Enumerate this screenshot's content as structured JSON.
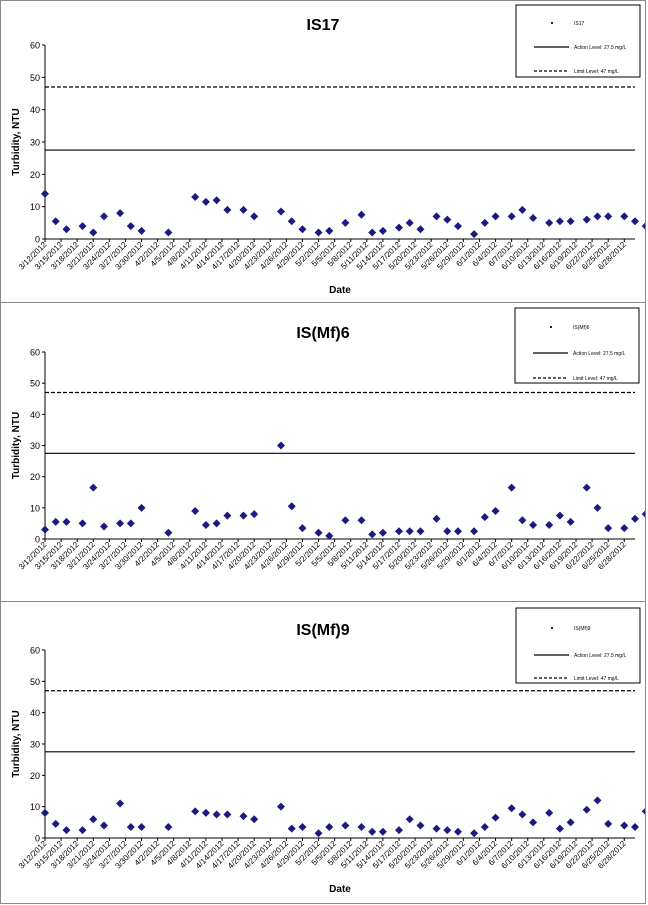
{
  "charts": [
    {
      "chart_data": {
        "type": "scatter",
        "title": "IS17",
        "xlabel": "Date",
        "ylabel": "Turbidity, NTU",
        "ylim": [
          0,
          60
        ],
        "yticks": [
          0,
          10,
          20,
          30,
          40,
          50,
          60
        ],
        "xlim": [
          "3/12/2012",
          "6/30/2012"
        ],
        "xticks": [
          "3/12/2012",
          "3/15/2012",
          "3/18/2012",
          "3/21/2012",
          "3/24/2012",
          "3/27/2012",
          "3/30/2012",
          "4/2/2012",
          "4/5/2012",
          "4/8/2012",
          "4/11/2012",
          "4/14/2012",
          "4/17/2012",
          "4/20/2012",
          "4/23/2012",
          "4/26/2012",
          "4/29/2012",
          "5/2/2012",
          "5/5/2012",
          "5/8/2012",
          "5/11/2012",
          "5/14/2012",
          "5/17/2012",
          "5/20/2012",
          "5/23/2012",
          "5/26/2012",
          "5/29/2012",
          "6/1/2012",
          "6/4/2012",
          "6/7/2012",
          "6/10/2012",
          "6/13/2012",
          "6/16/2012",
          "6/19/2012",
          "6/22/2012",
          "6/25/2012",
          "6/28/2012"
        ],
        "legend_position": "top-right",
        "grid": false,
        "series": [
          {
            "name": "IS17",
            "marker": "diamond",
            "color": "#1a1a80",
            "x": [
              "3/12/2012",
              "3/14/2012",
              "3/16/2012",
              "3/19/2012",
              "3/21/2012",
              "3/23/2012",
              "3/26/2012",
              "3/28/2012",
              "3/30/2012",
              "4/4/2012",
              "4/9/2012",
              "4/11/2012",
              "4/13/2012",
              "4/15/2012",
              "4/18/2012",
              "4/20/2012",
              "4/25/2012",
              "4/27/2012",
              "4/29/2012",
              "5/2/2012",
              "5/4/2012",
              "5/7/2012",
              "5/10/2012",
              "5/12/2012",
              "5/14/2012",
              "5/17/2012",
              "5/19/2012",
              "5/21/2012",
              "5/24/2012",
              "5/26/2012",
              "5/28/2012",
              "5/31/2012",
              "6/2/2012",
              "6/4/2012",
              "6/7/2012",
              "6/9/2012",
              "6/11/2012",
              "6/14/2012",
              "6/16/2012",
              "6/18/2012",
              "6/21/2012",
              "6/23/2012",
              "6/25/2012",
              "6/28/2012",
              "6/30/2012",
              "7/2/2012"
            ],
            "y": [
              14,
              5.5,
              3,
              4,
              2,
              7,
              8,
              4,
              2.5,
              2,
              13,
              11.5,
              12,
              9,
              9,
              7,
              8.5,
              5.5,
              3,
              2,
              2.5,
              5,
              7.5,
              2,
              2.5,
              3.5,
              5,
              3,
              7,
              6,
              4,
              1.5,
              5,
              7,
              7,
              9,
              6.5,
              5,
              5.5,
              5.5,
              6,
              7,
              7,
              7,
              5.5,
              4
            ]
          }
        ],
        "reference_lines": [
          {
            "name": "Action Level: 27.5 mg/L",
            "y": 27.5,
            "style": "solid"
          },
          {
            "name": "Limit Level: 47 mg/L",
            "y": 47,
            "style": "dashed"
          }
        ]
      }
    },
    {
      "chart_data": {
        "type": "scatter",
        "title": "IS(Mf)6",
        "xlabel": "",
        "ylabel": "Turbidity, NTU",
        "ylim": [
          0,
          60
        ],
        "yticks": [
          0,
          10,
          20,
          30,
          40,
          50,
          60
        ],
        "xlim": [
          "3/12/2012",
          "6/30/2012"
        ],
        "xticks": [
          "3/12/2012",
          "3/15/2012",
          "3/18/2012",
          "3/21/2012",
          "3/24/2012",
          "3/27/2012",
          "3/30/2012",
          "4/2/2012",
          "4/5/2012",
          "4/8/2012",
          "4/11/2012",
          "4/14/2012",
          "4/17/2012",
          "4/20/2012",
          "4/23/2012",
          "4/26/2012",
          "4/29/2012",
          "5/2/2012",
          "5/5/2012",
          "5/8/2012",
          "5/11/2012",
          "5/14/2012",
          "5/17/2012",
          "5/20/2012",
          "5/23/2012",
          "5/26/2012",
          "5/29/2012",
          "6/1/2012",
          "6/4/2012",
          "6/7/2012",
          "6/10/2012",
          "6/13/2012",
          "6/16/2012",
          "6/19/2012",
          "6/22/2012",
          "6/25/2012",
          "6/28/2012"
        ],
        "legend_position": "top-right",
        "grid": false,
        "series": [
          {
            "name": "IS(Mf)6",
            "marker": "diamond",
            "color": "#1a1a80",
            "x": [
              "3/12/2012",
              "3/14/2012",
              "3/16/2012",
              "3/19/2012",
              "3/21/2012",
              "3/23/2012",
              "3/26/2012",
              "3/28/2012",
              "3/30/2012",
              "4/4/2012",
              "4/9/2012",
              "4/11/2012",
              "4/13/2012",
              "4/15/2012",
              "4/18/2012",
              "4/20/2012",
              "4/25/2012",
              "4/27/2012",
              "4/29/2012",
              "5/2/2012",
              "5/4/2012",
              "5/7/2012",
              "5/10/2012",
              "5/12/2012",
              "5/14/2012",
              "5/17/2012",
              "5/19/2012",
              "5/21/2012",
              "5/24/2012",
              "5/26/2012",
              "5/28/2012",
              "5/31/2012",
              "6/2/2012",
              "6/4/2012",
              "6/7/2012",
              "6/9/2012",
              "6/11/2012",
              "6/14/2012",
              "6/16/2012",
              "6/18/2012",
              "6/21/2012",
              "6/23/2012",
              "6/25/2012",
              "6/28/2012",
              "6/30/2012",
              "7/2/2012"
            ],
            "y": [
              3,
              5.5,
              5.5,
              5,
              16.5,
              4,
              5,
              5,
              10,
              2,
              9,
              4.5,
              5,
              7.5,
              7.5,
              8,
              30,
              10.5,
              3.5,
              2,
              1,
              6,
              6,
              1.5,
              2,
              2.5,
              2.5,
              2.5,
              6.5,
              2.5,
              2.5,
              2.5,
              7,
              9,
              16.5,
              6,
              4.5,
              4.5,
              7.5,
              5.5,
              16.5,
              10,
              3.5,
              3.5,
              6.5,
              8
            ]
          }
        ],
        "reference_lines": [
          {
            "name": "Action Level: 27.5 mg/L",
            "y": 27.5,
            "style": "solid"
          },
          {
            "name": "Limit Level: 47 mg/L",
            "y": 47,
            "style": "dashed"
          }
        ]
      }
    },
    {
      "chart_data": {
        "type": "scatter",
        "title": "IS(Mf)9",
        "xlabel": "Date",
        "ylabel": "Turbidity, NTU",
        "ylim": [
          0,
          60
        ],
        "yticks": [
          0,
          10,
          20,
          30,
          40,
          50,
          60
        ],
        "xlim": [
          "3/12/2012",
          "6/30/2012"
        ],
        "xticks": [
          "3/12/2012",
          "3/15/2012",
          "3/18/2012",
          "3/21/2012",
          "3/24/2012",
          "3/27/2012",
          "3/30/2012",
          "4/2/2012",
          "4/5/2012",
          "4/8/2012",
          "4/11/2012",
          "4/14/2012",
          "4/17/2012",
          "4/20/2012",
          "4/23/2012",
          "4/26/2012",
          "4/29/2012",
          "5/2/2012",
          "5/5/2012",
          "5/8/2012",
          "5/11/2012",
          "5/14/2012",
          "5/17/2012",
          "5/20/2012",
          "5/23/2012",
          "5/26/2012",
          "5/29/2012",
          "6/1/2012",
          "6/4/2012",
          "6/7/2012",
          "6/10/2012",
          "6/13/2012",
          "6/16/2012",
          "6/19/2012",
          "6/22/2012",
          "6/25/2012",
          "6/28/2012"
        ],
        "legend_position": "top-right",
        "grid": false,
        "series": [
          {
            "name": "IS(Mf)9",
            "marker": "diamond",
            "color": "#1a1a80",
            "x": [
              "3/12/2012",
              "3/14/2012",
              "3/16/2012",
              "3/19/2012",
              "3/21/2012",
              "3/23/2012",
              "3/26/2012",
              "3/28/2012",
              "3/30/2012",
              "4/4/2012",
              "4/9/2012",
              "4/11/2012",
              "4/13/2012",
              "4/15/2012",
              "4/18/2012",
              "4/20/2012",
              "4/25/2012",
              "4/27/2012",
              "4/29/2012",
              "5/2/2012",
              "5/4/2012",
              "5/7/2012",
              "5/10/2012",
              "5/12/2012",
              "5/14/2012",
              "5/17/2012",
              "5/19/2012",
              "5/21/2012",
              "5/24/2012",
              "5/26/2012",
              "5/28/2012",
              "5/31/2012",
              "6/2/2012",
              "6/4/2012",
              "6/7/2012",
              "6/9/2012",
              "6/11/2012",
              "6/14/2012",
              "6/16/2012",
              "6/18/2012",
              "6/21/2012",
              "6/23/2012",
              "6/25/2012",
              "6/28/2012",
              "6/30/2012",
              "7/2/2012"
            ],
            "y": [
              8,
              4.5,
              2.5,
              2.5,
              6,
              4,
              11,
              3.5,
              3.5,
              3.5,
              8.5,
              8,
              7.5,
              7.5,
              7,
              6,
              10,
              3,
              3.5,
              1.5,
              3.5,
              4,
              3.5,
              2,
              2,
              2.5,
              6,
              4,
              3,
              2.5,
              2,
              1.5,
              3.5,
              6.5,
              9.5,
              7.5,
              5,
              8,
              3,
              5,
              9,
              12,
              4.5,
              4,
              3.5,
              8.5
            ]
          }
        ],
        "reference_lines": [
          {
            "name": "Action Level: 27.5 mg/L",
            "y": 27.5,
            "style": "solid"
          },
          {
            "name": "Limit Level: 47 mg/L",
            "y": 47,
            "style": "dashed"
          }
        ]
      }
    }
  ]
}
